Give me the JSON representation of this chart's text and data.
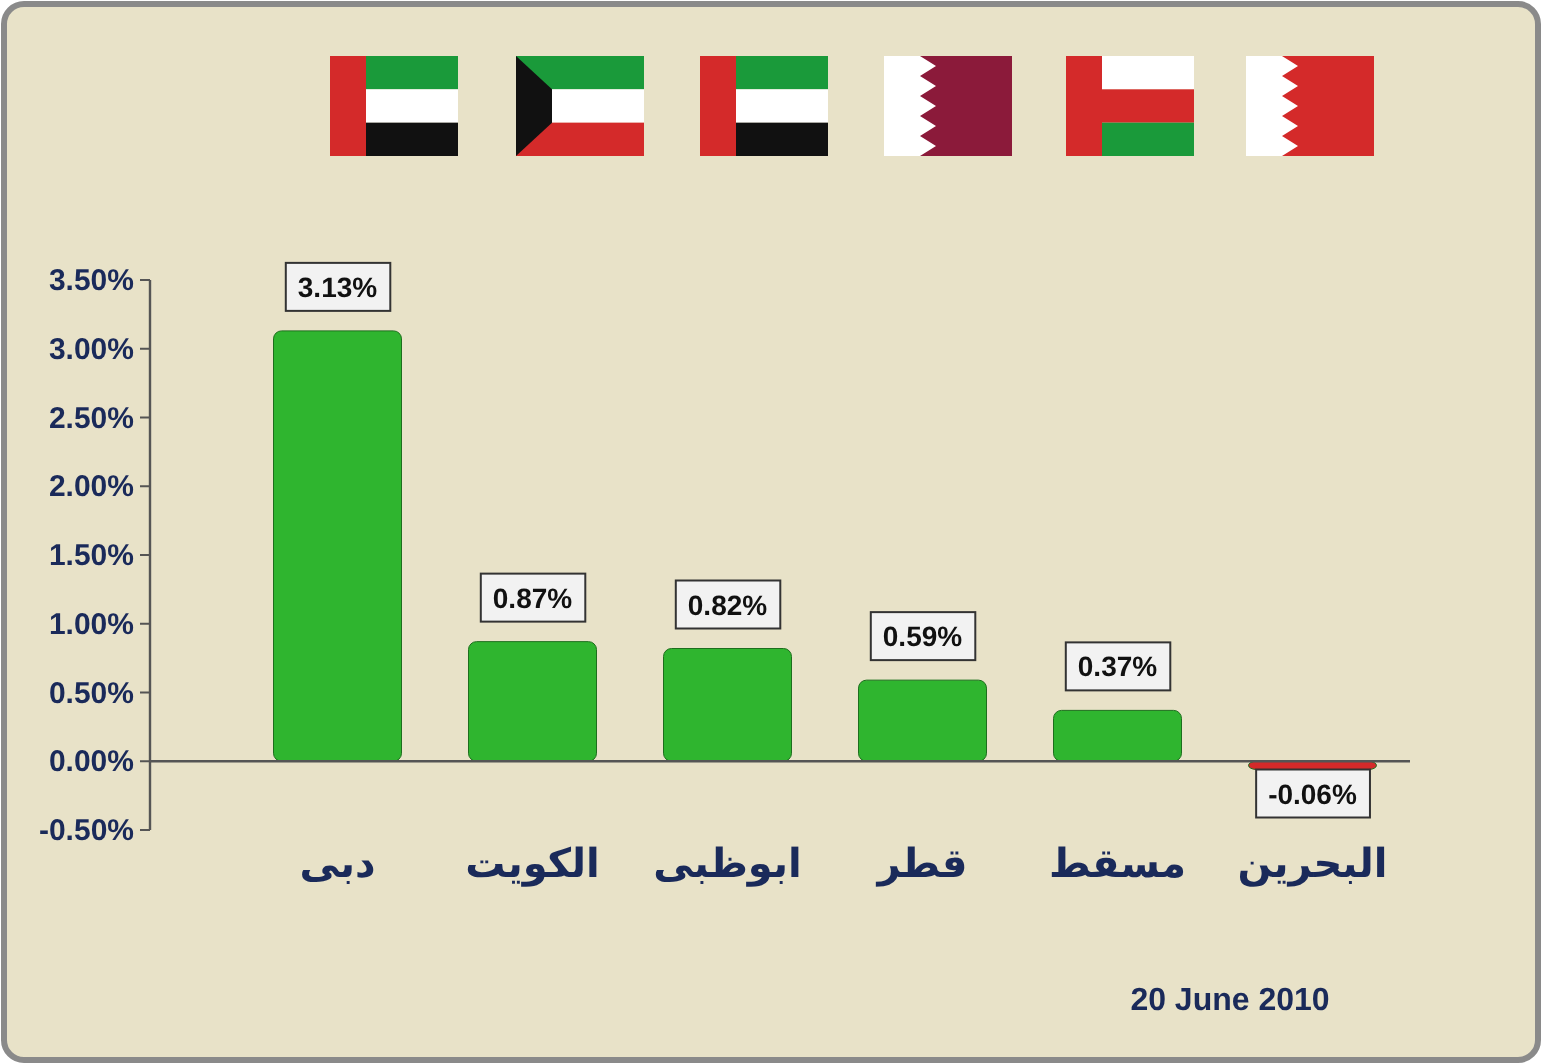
{
  "chart_data": {
    "type": "bar",
    "categories": [
      "دبى",
      "الكويت",
      "ابوظبى",
      "قطر",
      "مسقط",
      "البحرين"
    ],
    "values": [
      3.13,
      0.87,
      0.82,
      0.59,
      0.37,
      -0.06
    ],
    "colors": [
      "#2fb52f",
      "#2fb52f",
      "#2fb52f",
      "#2fb52f",
      "#2fb52f",
      "#d42a2a"
    ],
    "value_labels": [
      "3.13%",
      "0.87%",
      "0.82%",
      "0.59%",
      "0.37%",
      "-0.06%"
    ],
    "ylim": [
      -0.5,
      3.5
    ],
    "yticks": [
      {
        "value": -0.5,
        "label": "-0.50%"
      },
      {
        "value": 0,
        "label": "0.00%"
      },
      {
        "value": 0.5,
        "label": "0.50%"
      },
      {
        "value": 1,
        "label": "1.00%"
      },
      {
        "value": 1.5,
        "label": "1.50%"
      },
      {
        "value": 2,
        "label": "2.00%"
      },
      {
        "value": 2.5,
        "label": "2.50%"
      },
      {
        "value": 3,
        "label": "3.00%"
      },
      {
        "value": 3.5,
        "label": "3.50%"
      }
    ],
    "grid": false,
    "annotations": [
      "20 June 2010"
    ]
  }
}
